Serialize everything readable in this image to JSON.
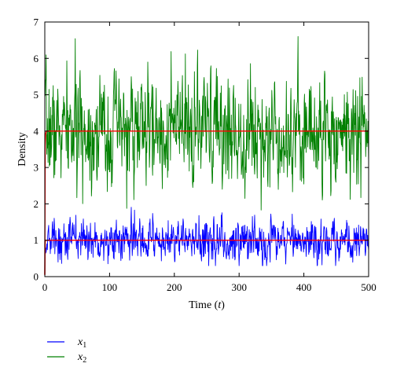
{
  "chart_data": {
    "type": "line",
    "title": "",
    "xlabel_main": "Time (",
    "xlabel_var": "t",
    "xlabel_close": ")",
    "ylabel": "Density",
    "xlim": [
      0,
      500
    ],
    "ylim": [
      0,
      7
    ],
    "x_ticks": [
      "0",
      "100",
      "200",
      "300",
      "400",
      "500"
    ],
    "y_ticks": [
      "0",
      "1",
      "2",
      "3",
      "4",
      "5",
      "6",
      "7"
    ],
    "grid": false,
    "legend_position": "below-left",
    "series": [
      {
        "name": "x1",
        "label_base": "x",
        "label_sub": "1",
        "color": "#0000ff",
        "description": "stochastic fluctuations around 1",
        "mean": 1.0,
        "start": 1.0,
        "range": [
          0.3,
          2.15
        ],
        "points": 1000
      },
      {
        "name": "x2",
        "label_base": "x",
        "label_sub": "2",
        "color": "#008000",
        "description": "stochastic fluctuations around 4",
        "mean": 4.0,
        "start": 5.0,
        "range": [
          1.8,
          6.6
        ],
        "points": 1000
      },
      {
        "name": "deterministic",
        "color": "#ff0000",
        "description": "deterministic solutions",
        "x": [
          0,
          0.6,
          1.2,
          2,
          3,
          4,
          500
        ],
        "y_lower": [
          0.05,
          0.95,
          1.0,
          1.0,
          1.0,
          1.0,
          1.0
        ],
        "y_upper": [
          0.05,
          3.6,
          3.9,
          3.98,
          4.0,
          4.0,
          4.0
        ]
      }
    ]
  }
}
